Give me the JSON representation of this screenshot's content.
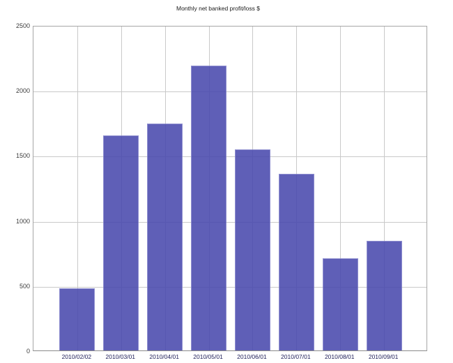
{
  "chart_data": {
    "type": "bar",
    "title": "Monthly net banked profit/loss $",
    "categories": [
      "2010/02/02",
      "2010/03/01",
      "2010/04/01",
      "2010/05/01",
      "2010/06/01",
      "2010/07/01",
      "2010/08/01",
      "2010/09/01"
    ],
    "values": [
      480,
      1655,
      1745,
      2190,
      1545,
      1355,
      710,
      840
    ],
    "xlabel": "",
    "ylabel": "",
    "ylim": [
      0,
      2500
    ],
    "yticks": [
      0,
      500,
      1000,
      1500,
      2000,
      2500
    ],
    "grid": true,
    "legend_position": "none",
    "bar_color": "#4949ae",
    "bar_edge_color": "#8181ca",
    "grid_color": "#c9c9c9",
    "axis_border_color": "#a6a6a6",
    "title_color": "#1a1a1a",
    "ytick_color": "#3c3c3c",
    "xtick_color": "#20205a",
    "background_color": "#ffffff"
  }
}
